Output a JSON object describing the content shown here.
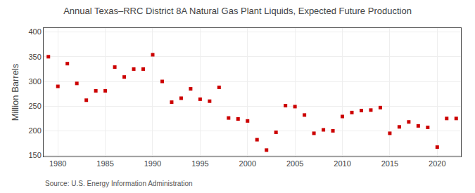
{
  "chart_data": {
    "type": "scatter",
    "title": "Annual Texas–RRC District 8A Natural Gas Plant Liquids, Expected Future Production",
    "ylabel": "Million Barrels",
    "annotations": [
      "Source: U.S. Energy Information Administration"
    ],
    "color": "#cc0000",
    "marker": "square",
    "grid": true,
    "xlim": [
      1978.5,
      2022.5
    ],
    "ylim": [
      148,
      408
    ],
    "xticks": [
      1980,
      1985,
      1990,
      1995,
      2000,
      2005,
      2010,
      2015,
      2020
    ],
    "yticks": [
      150,
      200,
      250,
      300,
      350,
      400
    ],
    "x": [
      1979,
      1980,
      1981,
      1982,
      1983,
      1984,
      1985,
      1986,
      1987,
      1988,
      1989,
      1990,
      1991,
      1992,
      1993,
      1994,
      1995,
      1996,
      1997,
      1998,
      1999,
      2000,
      2001,
      2002,
      2003,
      2004,
      2005,
      2006,
      2007,
      2008,
      2009,
      2010,
      2011,
      2012,
      2013,
      2014,
      2015,
      2016,
      2017,
      2018,
      2019,
      2020,
      2021,
      2022
    ],
    "values": [
      350,
      290,
      336,
      296,
      262,
      281,
      281,
      329,
      309,
      325,
      325,
      354,
      300,
      258,
      266,
      285,
      264,
      260,
      288,
      226,
      224,
      220,
      182,
      161,
      197,
      251,
      249,
      232,
      195,
      202,
      200,
      229,
      237,
      241,
      242,
      247,
      195,
      208,
      218,
      210,
      207,
      167,
      225,
      225
    ]
  }
}
